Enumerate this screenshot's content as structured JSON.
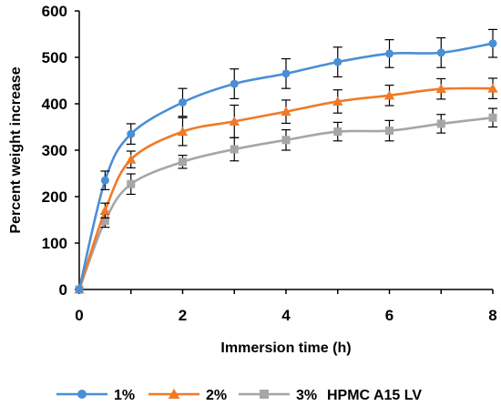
{
  "chart_data": {
    "type": "line",
    "xlabel": "Immersion time (h)",
    "ylabel": "Percent weight increase",
    "xlim": [
      0,
      8
    ],
    "ylim": [
      0,
      600
    ],
    "x_ticks": [
      "0",
      "2",
      "4",
      "6",
      "8"
    ],
    "y_ticks": [
      "0",
      "100",
      "200",
      "300",
      "400",
      "500",
      "600"
    ],
    "grid": false,
    "legend_position": "bottom",
    "legend_suffix": "HPMC A15 LV",
    "x": [
      0,
      0.5,
      1,
      2,
      3,
      4,
      5,
      6,
      7,
      8
    ],
    "series": [
      {
        "name": "1%",
        "color": "#4a8ed6",
        "marker": "circle",
        "values": [
          0,
          235,
          335,
          403,
          443,
          465,
          490,
          508,
          510,
          530
        ],
        "errors": [
          0,
          20,
          22,
          30,
          32,
          32,
          32,
          30,
          32,
          30
        ]
      },
      {
        "name": "2%",
        "color": "#f07a26",
        "marker": "triangle",
        "values": [
          0,
          170,
          280,
          340,
          362,
          383,
          405,
          418,
          432,
          433
        ],
        "errors": [
          0,
          16,
          18,
          30,
          35,
          25,
          25,
          22,
          22,
          22
        ]
      },
      {
        "name": "3%",
        "color": "#a6a6a6",
        "marker": "square",
        "values": [
          0,
          148,
          227,
          275,
          302,
          322,
          340,
          342,
          357,
          370
        ],
        "errors": [
          0,
          14,
          22,
          14,
          25,
          22,
          20,
          22,
          20,
          20
        ]
      }
    ]
  }
}
